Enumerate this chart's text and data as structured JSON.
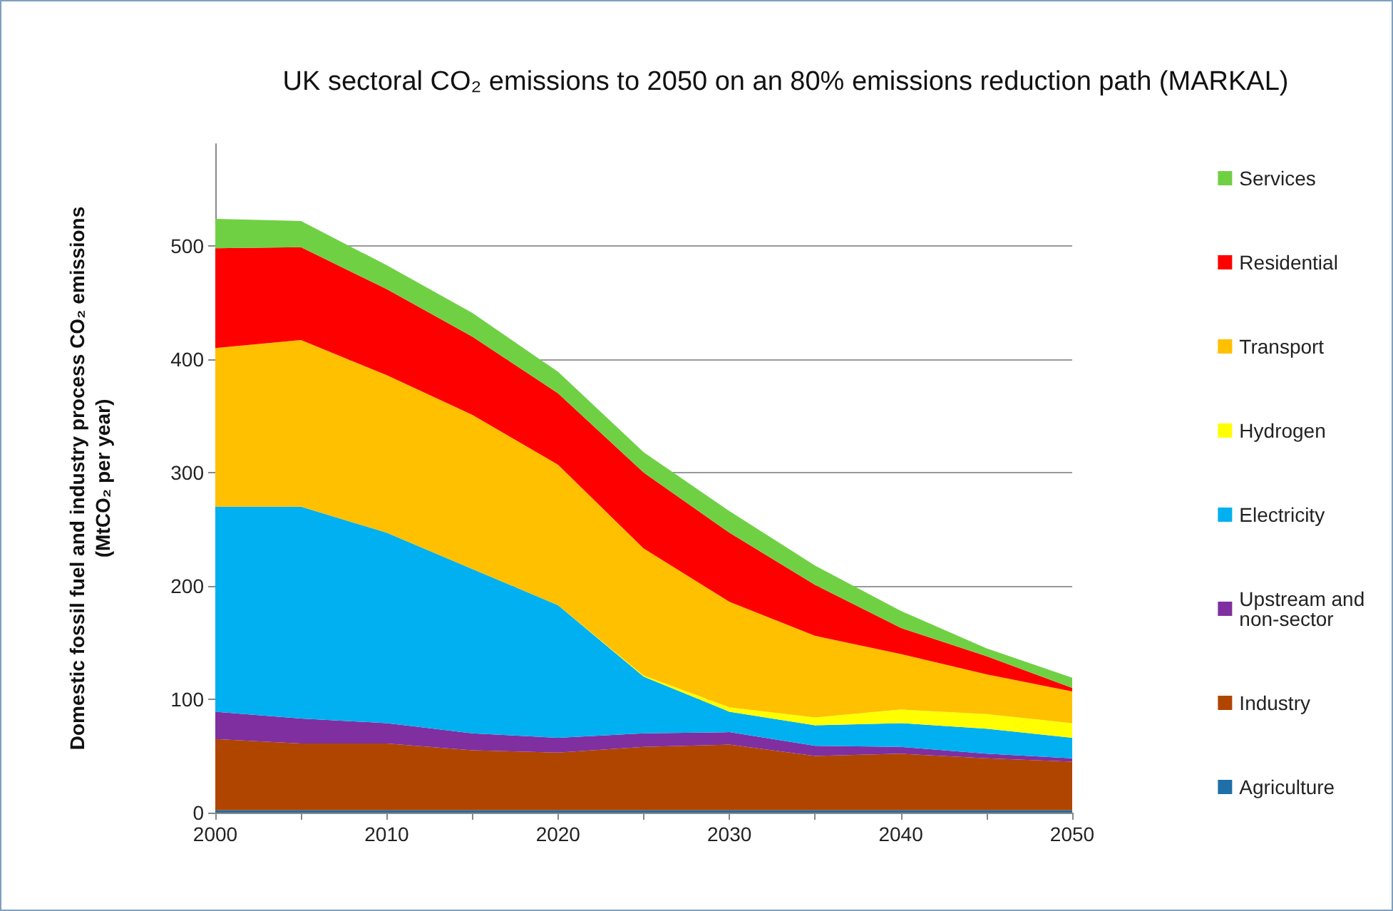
{
  "chart_data": {
    "type": "area",
    "title": "UK sectoral CO₂ emissions to 2050 on an 80% emissions reduction path (MARKAL)",
    "ylabel": "Domestic fossil fuel and industry process CO₂ emissions\n(MtCO₂ per year)",
    "categories": [
      "2000",
      null,
      "2010",
      null,
      "2020",
      null,
      "2030",
      null,
      "2040",
      null,
      "2050"
    ],
    "stacked": true,
    "series": [
      {
        "name": "Agriculture",
        "color": "#1f6fa8",
        "values": [
          2,
          2,
          2,
          2,
          2,
          2,
          2,
          2,
          2,
          2,
          2
        ]
      },
      {
        "name": "Industry",
        "color": "#b04500",
        "values": [
          63,
          59,
          59,
          53,
          51,
          56,
          58,
          48,
          50,
          46,
          43
        ]
      },
      {
        "name": "Upstream and non-sector",
        "color": "#7f2fa0",
        "values": [
          24,
          22,
          18,
          15,
          13,
          12,
          11,
          9,
          6,
          4,
          3
        ]
      },
      {
        "name": "Electricity",
        "color": "#00b0f0",
        "values": [
          181,
          187,
          168,
          145,
          117,
          50,
          18,
          18,
          21,
          22,
          18
        ]
      },
      {
        "name": "Hydrogen",
        "color": "#ffff00",
        "values": [
          0,
          0,
          0,
          0,
          0,
          1,
          4,
          7,
          12,
          13,
          13
        ]
      },
      {
        "name": "Transport",
        "color": "#ffc000",
        "values": [
          140,
          147,
          139,
          136,
          124,
          112,
          93,
          72,
          49,
          35,
          28
        ]
      },
      {
        "name": "Residential",
        "color": "#ff0000",
        "values": [
          88,
          82,
          76,
          69,
          63,
          67,
          61,
          45,
          23,
          16,
          3
        ]
      },
      {
        "name": "Services",
        "color": "#70d044",
        "values": [
          26,
          23,
          21,
          21,
          19,
          18,
          19,
          17,
          15,
          7,
          9
        ]
      }
    ],
    "ylim": [
      0,
      590
    ],
    "yticks": [
      0,
      100,
      200,
      300,
      400,
      500
    ],
    "grid": "y",
    "legend": "right"
  }
}
